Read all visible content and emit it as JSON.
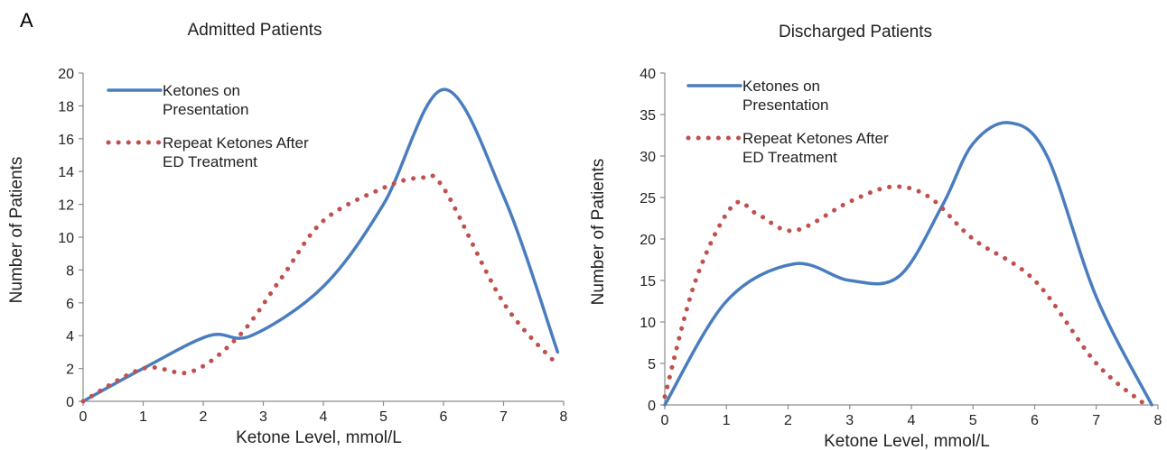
{
  "panel_label": "A",
  "chart_data": [
    {
      "type": "line",
      "title": "Admitted Patients",
      "xlabel": "Ketone Level, mmol/L",
      "ylabel": "Number of Patients",
      "xlim": [
        0,
        8
      ],
      "ylim": [
        0,
        20
      ],
      "xticks": [
        "0",
        "1",
        "2",
        "3",
        "4",
        "5",
        "6",
        "7",
        "8"
      ],
      "yticks": [
        "0",
        "2",
        "4",
        "6",
        "8",
        "10",
        "12",
        "14",
        "16",
        "18",
        "20"
      ],
      "grid": false,
      "legend": "top-left",
      "series": [
        {
          "name": "Ketones on Presentation",
          "style": "solid",
          "color": "#4a7dbf",
          "points": [
            [
              0,
              0
            ],
            [
              1,
              2
            ],
            [
              2.1,
              4
            ],
            [
              2.8,
              4
            ],
            [
              4,
              7
            ],
            [
              5,
              12
            ],
            [
              6,
              19
            ],
            [
              7,
              12.5
            ],
            [
              7.9,
              3
            ]
          ]
        },
        {
          "name": "Repeat Ketones After ED Treatment",
          "style": "dotted",
          "color": "#c0504d",
          "points": [
            [
              0,
              0
            ],
            [
              1,
              2
            ],
            [
              1.8,
              1.8
            ],
            [
              2.6,
              4
            ],
            [
              3.3,
              7.5
            ],
            [
              4,
              11
            ],
            [
              5,
              13
            ],
            [
              5.6,
              13.6
            ],
            [
              6,
              13
            ],
            [
              7,
              6
            ],
            [
              7.9,
              2.2
            ]
          ]
        }
      ]
    },
    {
      "type": "line",
      "title": "Discharged Patients",
      "xlabel": "Ketone Level, mmol/L",
      "ylabel": "Number of Patients",
      "xlim": [
        0,
        8
      ],
      "ylim": [
        0,
        40
      ],
      "xticks": [
        "0",
        "1",
        "2",
        "3",
        "4",
        "5",
        "6",
        "7",
        "8"
      ],
      "yticks": [
        "0",
        "5",
        "10",
        "15",
        "20",
        "25",
        "30",
        "35",
        "40"
      ],
      "grid": false,
      "legend": "top-left",
      "series": [
        {
          "name": "Ketones on Presentation",
          "style": "solid",
          "color": "#4a7dbf",
          "points": [
            [
              0,
              0
            ],
            [
              1,
              12.5
            ],
            [
              2.1,
              17
            ],
            [
              3,
              15
            ],
            [
              3.8,
              15.5
            ],
            [
              4.5,
              24
            ],
            [
              5,
              31.5
            ],
            [
              5.6,
              34
            ],
            [
              6.2,
              30
            ],
            [
              7,
              13
            ],
            [
              7.9,
              0
            ]
          ]
        },
        {
          "name": "Repeat Ketones After ED Treatment",
          "style": "dotted",
          "color": "#c0504d",
          "points": [
            [
              0,
              1
            ],
            [
              0.5,
              15
            ],
            [
              1.1,
              24
            ],
            [
              1.5,
              23
            ],
            [
              2.1,
              21
            ],
            [
              3,
              24.5
            ],
            [
              3.7,
              26.3
            ],
            [
              4.3,
              25
            ],
            [
              5,
              20
            ],
            [
              6,
              15
            ],
            [
              7,
              5
            ],
            [
              7.8,
              0
            ]
          ]
        }
      ]
    }
  ]
}
